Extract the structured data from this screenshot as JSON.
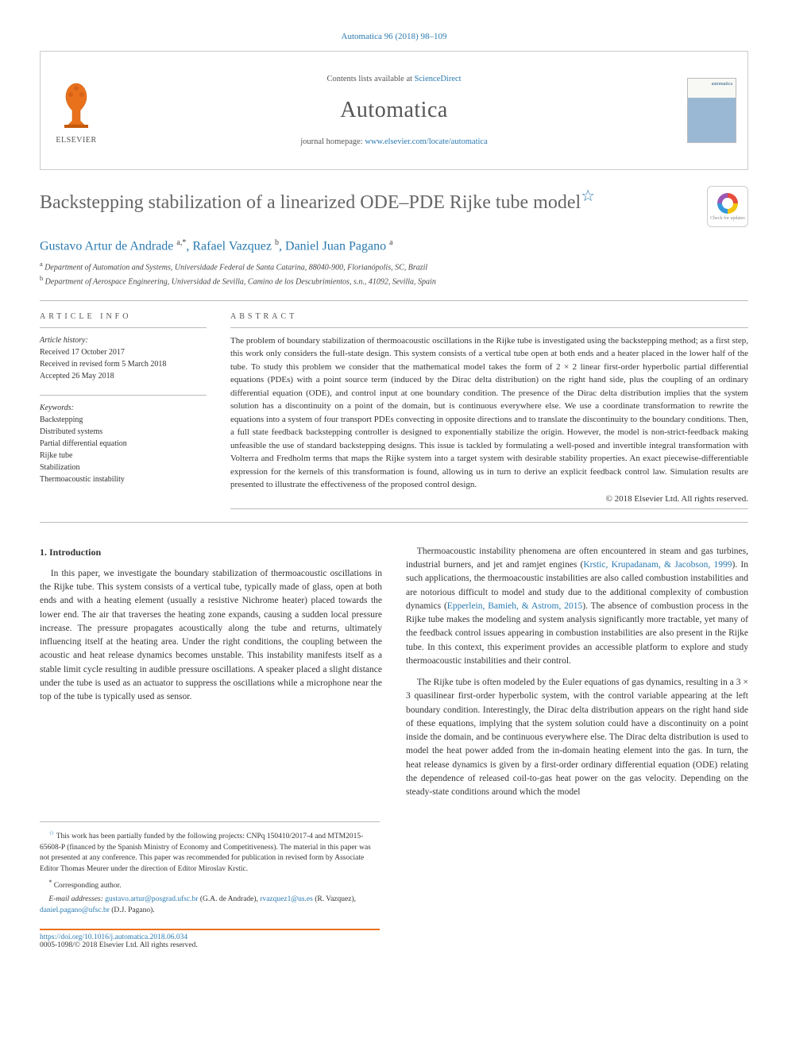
{
  "citation": "Automatica 96 (2018) 98–109",
  "header": {
    "contents_prefix": "Contents lists available at ",
    "contents_link": "ScienceDirect",
    "journal": "Automatica",
    "homepage_prefix": "journal homepage: ",
    "homepage_link": "www.elsevier.com/locate/automatica",
    "publisher": "ELSEVIER",
    "cover_label": "automatica"
  },
  "title": "Backstepping stabilization of a linearized ODE–PDE Rijke tube model",
  "title_star": "☆",
  "crossmark": {
    "label": "Check for updates"
  },
  "authors_html": "Gustavo Artur de Andrade <sup>a,*</sup>, Rafael Vazquez <sup>b</sup>, Daniel Juan Pagano <sup>a</sup>",
  "affiliations": [
    {
      "sup": "a",
      "text": "Department of Automation and Systems, Universidade Federal de Santa Catarina, 88040-900, Florianópolis, SC, Brazil"
    },
    {
      "sup": "b",
      "text": "Department of Aerospace Engineering, Universidad de Sevilla, Camino de los Descubrimientos, s.n., 41092, Sevilla, Spain"
    }
  ],
  "article_info": {
    "heading": "ARTICLE INFO",
    "history_label": "Article history:",
    "history": [
      "Received 17 October 2017",
      "Received in revised form 5 March 2018",
      "Accepted 26 May 2018"
    ],
    "keywords_label": "Keywords:",
    "keywords": [
      "Backstepping",
      "Distributed systems",
      "Partial differential equation",
      "Rijke tube",
      "Stabilization",
      "Thermoacoustic instability"
    ]
  },
  "abstract": {
    "heading": "ABSTRACT",
    "text": "The problem of boundary stabilization of thermoacoustic oscillations in the Rijke tube is investigated using the backstepping method; as a first step, this work only considers the full-state design. This system consists of a vertical tube open at both ends and a heater placed in the lower half of the tube. To study this problem we consider that the mathematical model takes the form of 2 × 2 linear first-order hyperbolic partial differential equations (PDEs) with a point source term (induced by the Dirac delta distribution) on the right hand side, plus the coupling of an ordinary differential equation (ODE), and control input at one boundary condition. The presence of the Dirac delta distribution implies that the system solution has a discontinuity on a point of the domain, but is continuous everywhere else. We use a coordinate transformation to rewrite the equations into a system of four transport PDEs convecting in opposite directions and to translate the discontinuity to the boundary conditions. Then, a full state feedback backstepping controller is designed to exponentially stabilize the origin. However, the model is non-strict-feedback making unfeasible the use of standard backstepping designs. This issue is tackled by formulating a well-posed and invertible integral transformation with Volterra and Fredholm terms that maps the Rijke system into a target system with desirable stability properties. An exact piecewise-differentiable expression for the kernels of this transformation is found, allowing us in turn to derive an explicit feedback control law. Simulation results are presented to illustrate the effectiveness of the proposed control design.",
    "copyright": "© 2018 Elsevier Ltd. All rights reserved."
  },
  "body": {
    "section_no": "1.",
    "section_title": "Introduction",
    "left_p1": "In this paper, we investigate the boundary stabilization of thermoacoustic oscillations in the Rijke tube. This system consists of a vertical tube, typically made of glass, open at both ends and with a heating element (usually a resistive Nichrome heater) placed towards the lower end. The air that traverses the heating zone expands, causing a sudden local pressure increase. The pressure propagates acoustically along the tube and returns, ultimately influencing itself at the heating area. Under the right conditions, the coupling between the acoustic and heat release dynamics becomes unstable. This instability manifests itself as a stable limit cycle resulting in audible pressure oscillations. A speaker placed a slight distance under the tube is used as an actuator to suppress the oscillations while a microphone near the top of the tube is typically used as sensor.",
    "right_p1_a": "Thermoacoustic instability phenomena are often encountered in steam and gas turbines, industrial burners, and jet and ramjet engines (",
    "right_p1_ref1": "Krstic, Krupadanam, & Jacobson, 1999",
    "right_p1_b": "). In such applications, the thermoacoustic instabilities are also called combustion instabilities and are notorious difficult to model and study due to the additional complexity of combustion dynamics (",
    "right_p1_ref2": "Epperlein, Bamieh, & Astrom, 2015",
    "right_p1_c": "). The absence of combustion process in the Rijke tube makes the modeling and system analysis significantly more tractable, yet many of the feedback control issues appearing in combustion instabilities are also present in the Rijke tube. In this context, this experiment provides an accessible platform to explore and study thermoacoustic instabilities and their control.",
    "right_p2": "The Rijke tube is often modeled by the Euler equations of gas dynamics, resulting in a 3 × 3 quasilinear first-order hyperbolic system, with the control variable appearing at the left boundary condition. Interestingly, the Dirac delta distribution appears on the right hand side of these equations, implying that the system solution could have a discontinuity on a point inside the domain, and be continuous everywhere else. The Dirac delta distribution is used to model the heat power added from the in-domain heating element into the gas. In turn, the heat release dynamics is given by a first-order ordinary differential equation (ODE) relating the dependence of released coil-to-gas heat power on the gas velocity. Depending on the steady-state conditions around which the model"
  },
  "footnotes": {
    "funding": "This work has been partially funded by the following projects: CNPq 150410/2017-4 and MTM2015-65608-P (financed by the Spanish Ministry of Economy and Competitiveness). The material in this paper was not presented at any conference. This paper was recommended for publication in revised form by Associate Editor Thomas Meurer under the direction of Editor Miroslav Krstic.",
    "corresp": "Corresponding author.",
    "email_label": "E-mail addresses:",
    "emails": [
      {
        "addr": "gustavo.artur@posgrad.ufsc.br",
        "who": "(G.A. de Andrade)"
      },
      {
        "addr": "rvazquez1@us.es",
        "who": "(R. Vazquez)"
      },
      {
        "addr": "daniel.pagano@ufsc.br",
        "who": "(D.J. Pagano)"
      }
    ]
  },
  "doi": {
    "url": "https://doi.org/10.1016/j.automatica.2018.06.034",
    "issn_line": "0005-1098/© 2018 Elsevier Ltd. All rights reserved."
  },
  "colors": {
    "link": "#2a7ab0",
    "accent": "#e9711c",
    "text": "#333333",
    "muted": "#666666",
    "rule": "#bbbbbb"
  }
}
